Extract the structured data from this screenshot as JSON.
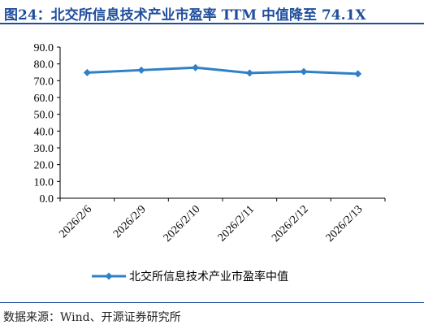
{
  "header": {
    "title": "图24：北交所信息技术产业市盈率 TTM 中值降至 74.1X"
  },
  "footer": {
    "source": "数据来源：Wind、开源证券研究所"
  },
  "chart_data": {
    "type": "line",
    "title": "图24：北交所信息技术产业市盈率 TTM 中值降至 74.1X",
    "xlabel": "",
    "ylabel": "",
    "categories": [
      "2026/2/6",
      "2026/2/9",
      "2026/2/10",
      "2026/2/11",
      "2026/2/12",
      "2026/2/13"
    ],
    "series": [
      {
        "name": "北交所信息技术产业市盈率中值",
        "values": [
          74.8,
          76.3,
          77.8,
          74.6,
          75.4,
          74.1
        ],
        "color": "#2e80c8"
      }
    ],
    "ylim": [
      0,
      90
    ],
    "yticks": [
      "0.0",
      "10.0",
      "20.0",
      "30.0",
      "40.0",
      "50.0",
      "60.0",
      "70.0",
      "80.0",
      "90.0"
    ],
    "grid": false,
    "legend": "bottom-center"
  }
}
